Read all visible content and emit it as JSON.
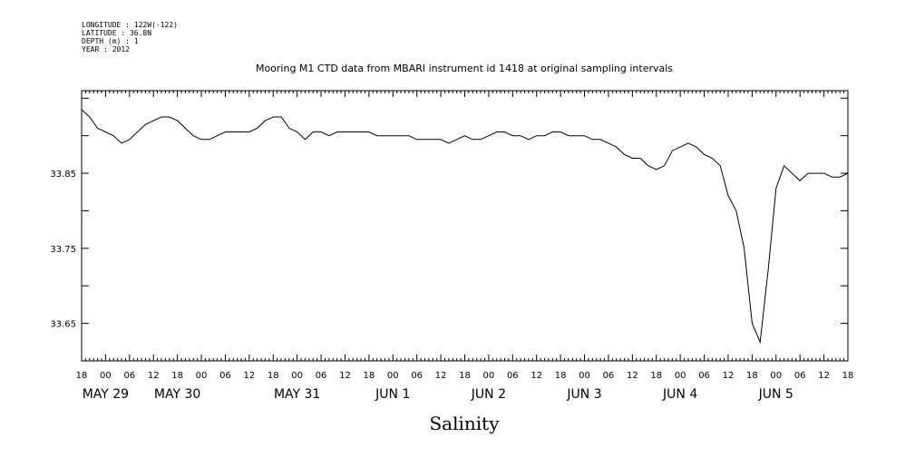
{
  "metadata": {
    "lines": [
      "LONGITUDE : 122W(-122)",
      "LATITUDE : 36.8N",
      "DEPTH (m) : 1",
      "YEAR : 2012"
    ]
  },
  "chart_data": {
    "type": "line",
    "title": "Mooring M1 CTD data from MBARI instrument id 1418 at original sampling intervals",
    "xlabel": "Salinity",
    "ylabel": "",
    "x_unit": "hours since May 28 18:00 (2012)",
    "xlim": [
      0,
      192
    ],
    "ylim": [
      33.6,
      33.96
    ],
    "yticks": [
      33.65,
      33.75,
      33.85
    ],
    "ytick_labels": [
      "33.65",
      "33.75",
      "33.85"
    ],
    "hour_tick_labels": [
      "18",
      "00",
      "06",
      "12",
      "18",
      "00",
      "06",
      "12",
      "18",
      "00",
      "06",
      "12",
      "18",
      "00",
      "06",
      "12",
      "18",
      "00",
      "06",
      "12",
      "18",
      "00",
      "06",
      "12",
      "18",
      "00",
      "06",
      "12",
      "18",
      "00",
      "06",
      "12",
      "18"
    ],
    "date_labels": [
      {
        "label": "MAY 29",
        "x": 6
      },
      {
        "label": "MAY 30",
        "x": 24
      },
      {
        "label": "MAY 31",
        "x": 54
      },
      {
        "label": "JUN  1",
        "x": 78
      },
      {
        "label": "JUN  2",
        "x": 102
      },
      {
        "label": "JUN  3",
        "x": 126
      },
      {
        "label": "JUN  4",
        "x": 150
      },
      {
        "label": "JUN  5",
        "x": 174
      }
    ],
    "series": [
      {
        "x": [
          0,
          2,
          4,
          6,
          8,
          10,
          12,
          14,
          16,
          18,
          20,
          22,
          24,
          26,
          28,
          30,
          32,
          34,
          36,
          38,
          40,
          42,
          44,
          46,
          48,
          50,
          52,
          54,
          56,
          58,
          60,
          62,
          64,
          66,
          68,
          70,
          72,
          74,
          76,
          78,
          80,
          82,
          84,
          86,
          88,
          90,
          92,
          94,
          96,
          98,
          100,
          102,
          104,
          106,
          108,
          110,
          112,
          114,
          116,
          118,
          120,
          122,
          124,
          126,
          128,
          130,
          132,
          134,
          136,
          138,
          140,
          142,
          144,
          146,
          148,
          150,
          152,
          154,
          156,
          158,
          160,
          162,
          164,
          166,
          168,
          170,
          172,
          174,
          176,
          178,
          180,
          182,
          184,
          186,
          188,
          190,
          192
        ],
        "y": [
          33.935,
          33.925,
          33.91,
          33.905,
          33.9,
          33.89,
          33.895,
          33.905,
          33.915,
          33.92,
          33.925,
          33.925,
          33.92,
          33.91,
          33.9,
          33.895,
          33.895,
          33.9,
          33.905,
          33.905,
          33.905,
          33.905,
          33.91,
          33.92,
          33.925,
          33.925,
          33.91,
          33.905,
          33.895,
          33.905,
          33.905,
          33.9,
          33.905,
          33.905,
          33.905,
          33.905,
          33.905,
          33.9,
          33.9,
          33.9,
          33.9,
          33.9,
          33.895,
          33.895,
          33.895,
          33.895,
          33.89,
          33.895,
          33.9,
          33.895,
          33.895,
          33.9,
          33.905,
          33.905,
          33.9,
          33.9,
          33.895,
          33.9,
          33.9,
          33.905,
          33.905,
          33.9,
          33.9,
          33.9,
          33.895,
          33.895,
          33.89,
          33.885,
          33.875,
          33.87,
          33.87,
          33.86,
          33.855,
          33.86,
          33.88,
          33.885,
          33.89,
          33.885,
          33.875,
          33.87,
          33.86,
          33.82,
          33.8,
          33.75,
          33.65,
          33.625,
          33.72,
          33.83,
          33.86,
          33.85,
          33.84,
          33.85,
          33.85,
          33.85,
          33.845,
          33.845,
          33.85
        ]
      }
    ]
  }
}
